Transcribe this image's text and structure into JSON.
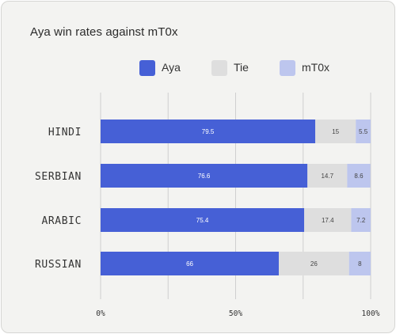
{
  "chart_data": {
    "type": "bar",
    "orientation": "horizontal",
    "stacked": true,
    "title": "Aya win rates against mT0x",
    "categories": [
      "HINDI",
      "SERBIAN",
      "ARABIC",
      "RUSSIAN"
    ],
    "series": [
      {
        "name": "Aya",
        "color": "#4660d6",
        "label_color": "#ffffff",
        "values": [
          79.5,
          76.6,
          75.4,
          66
        ]
      },
      {
        "name": "Tie",
        "color": "#dedede",
        "label_color": "#444444",
        "values": [
          15,
          14.7,
          17.4,
          26
        ]
      },
      {
        "name": "mT0x",
        "color": "#bdc6ee",
        "label_color": "#444444",
        "values": [
          5.5,
          8.6,
          7.2,
          8
        ]
      }
    ],
    "x_ticks": [
      "0%",
      "50%",
      "100%"
    ],
    "xlim": [
      0,
      100
    ],
    "grid": true,
    "legend_position": "top"
  }
}
